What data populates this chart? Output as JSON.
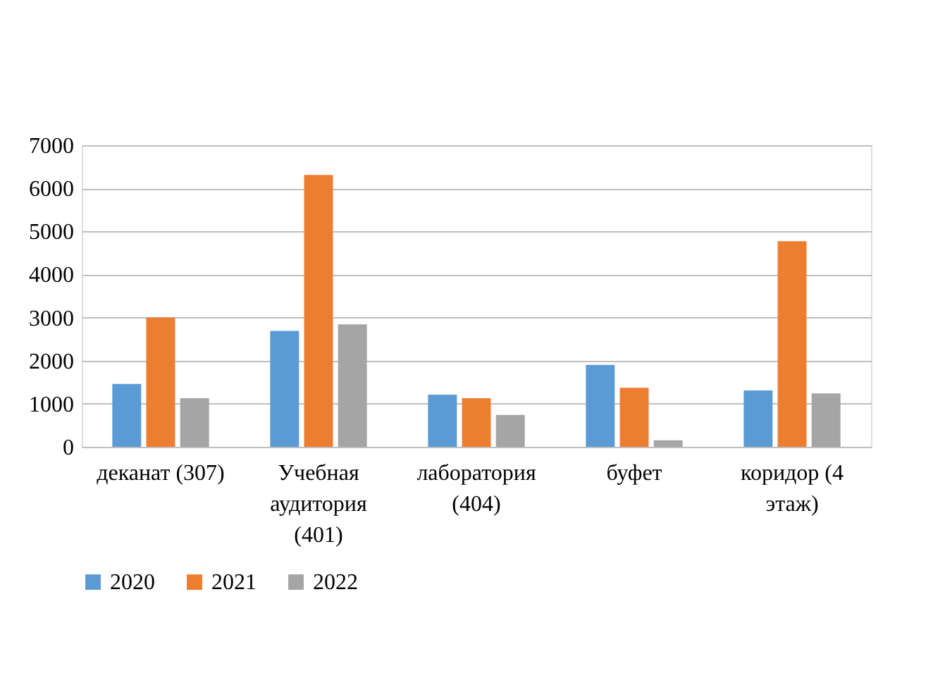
{
  "chart_data": {
    "type": "bar",
    "categories": [
      "деканат (307)",
      "Учебная аудитория (401)",
      "лаборатория (404)",
      "буфет",
      "коридор (4 этаж)"
    ],
    "series": [
      {
        "name": "2020",
        "color": "#5b9bd5",
        "values": [
          1460,
          2690,
          1210,
          1900,
          1310
        ]
      },
      {
        "name": "2021",
        "color": "#ed7d31",
        "values": [
          3000,
          6310,
          1130,
          1370,
          4770
        ]
      },
      {
        "name": "2022",
        "color": "#a5a5a5",
        "values": [
          1130,
          2840,
          740,
          150,
          1240
        ]
      }
    ],
    "ylim": [
      0,
      7000
    ],
    "yticks": [
      0,
      1000,
      2000,
      3000,
      4000,
      5000,
      6000,
      7000
    ],
    "grid": "y",
    "legend": "bottom"
  }
}
